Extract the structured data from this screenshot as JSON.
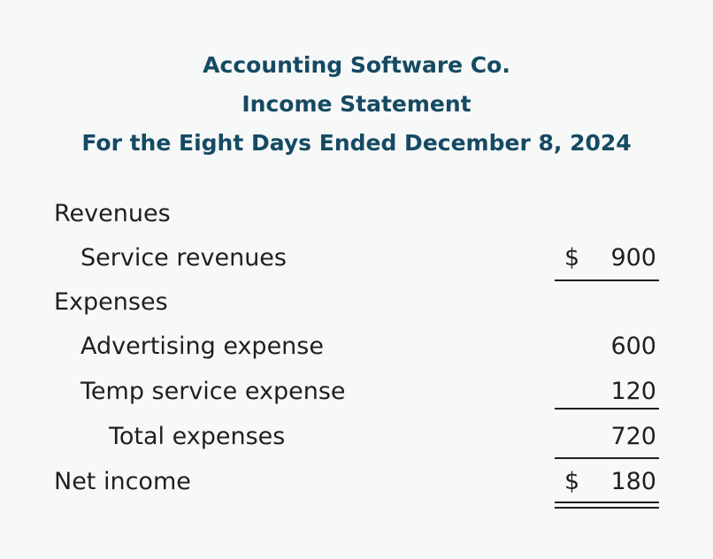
{
  "header": {
    "company": "Accounting Software Co.",
    "statement": "Income Statement",
    "period": "For the Eight Days Ended December 8, 2024"
  },
  "statement": {
    "revenues_label": "Revenues",
    "service_revenues": {
      "label": "Service revenues",
      "currency": "$",
      "amount": "900"
    },
    "expenses_label": "Expenses",
    "advertising_expense": {
      "label": "Advertising expense",
      "amount": "600"
    },
    "temp_service_expense": {
      "label": "Temp service expense",
      "amount": "120"
    },
    "total_expenses": {
      "label": "Total expenses",
      "amount": "720"
    },
    "net_income": {
      "label": "Net income",
      "currency": "$",
      "amount": "180"
    }
  }
}
